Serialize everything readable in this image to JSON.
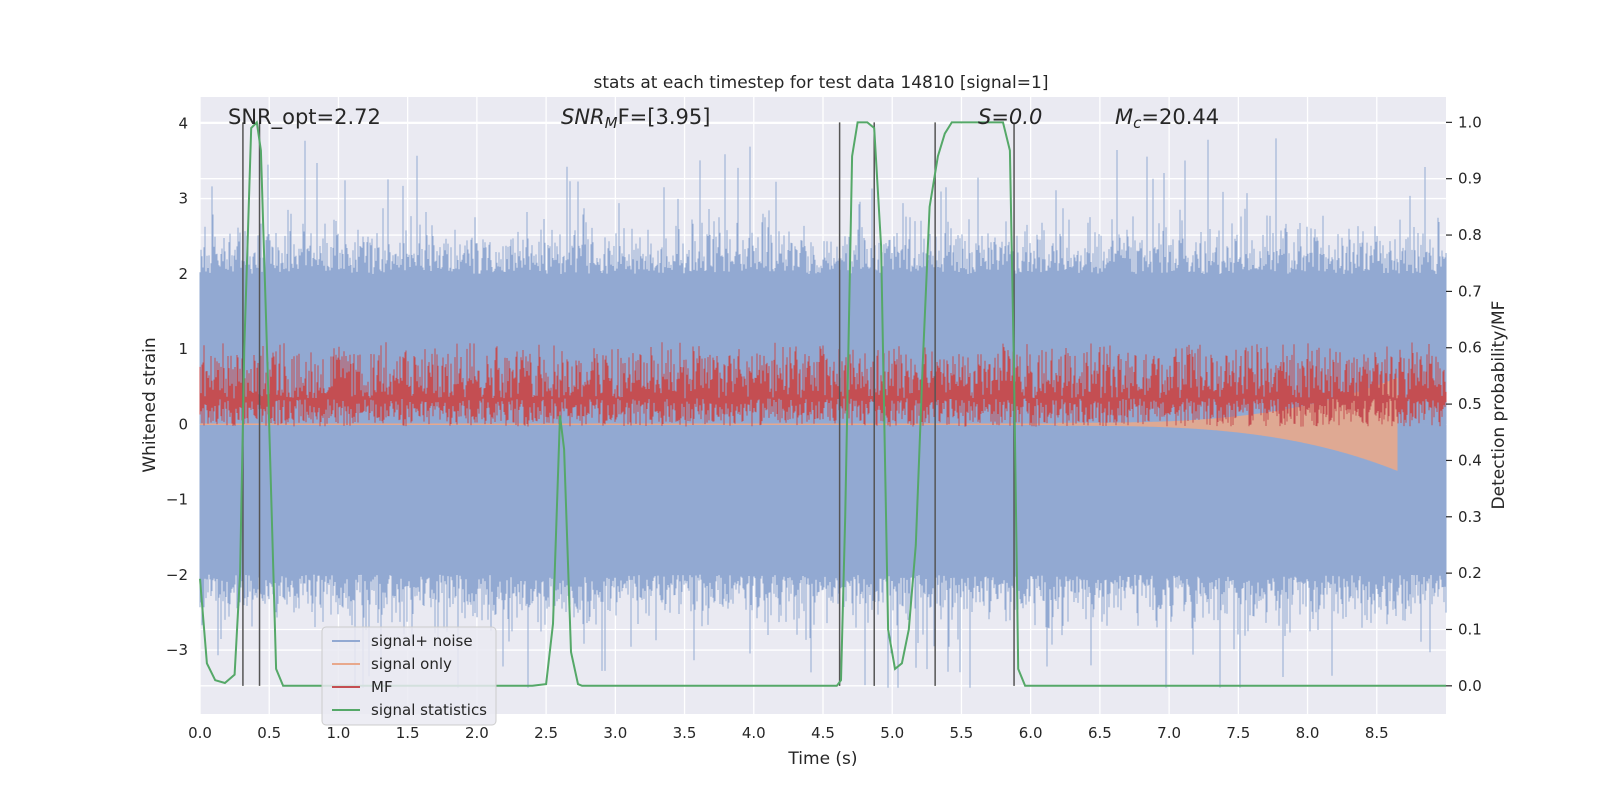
{
  "chart_data": {
    "type": "line",
    "title": "stats at each timestep for test data 14810 [signal=1]",
    "xlabel": "Time (s)",
    "ylabel_left": "Whitened strain",
    "ylabel_right": "Detection probability/MF",
    "xlim": [
      0,
      9.0
    ],
    "ylim_left": [
      -3.85,
      4.35
    ],
    "ylim_right": [
      -0.05,
      1.045
    ],
    "grid": true,
    "legend_position": "lower-left",
    "x_ticks": [
      "0.0",
      "0.5",
      "1.0",
      "1.5",
      "2.0",
      "2.5",
      "3.0",
      "3.5",
      "4.0",
      "4.5",
      "5.0",
      "5.5",
      "6.0",
      "6.5",
      "7.0",
      "7.5",
      "8.0",
      "8.5"
    ],
    "y_ticks_left": [
      "4",
      "3",
      "2",
      "1",
      "0",
      "−1",
      "−2",
      "−3"
    ],
    "y_ticks_right": [
      "1.0",
      "0.9",
      "0.8",
      "0.7",
      "0.6",
      "0.5",
      "0.4",
      "0.3",
      "0.2",
      "0.1",
      "0.0"
    ],
    "annotations": {
      "snr_opt": "SNR_opt=2.72",
      "snr_mf_prefix": "SNR",
      "snr_mf_sub": "M",
      "snr_mf_suffix": "F=[3.95]",
      "s_value": "S=0.0",
      "mc_prefix": "M",
      "mc_sub": "c",
      "mc_suffix": "=20.44"
    },
    "vertical_markers_x": [
      0.31,
      0.43,
      4.62,
      4.87,
      5.31,
      5.88
    ],
    "series": [
      {
        "name": "signal+ noise",
        "color": "#92a9d2",
        "axis": "left",
        "envelope": {
          "x": [
            0,
            9.0
          ],
          "typical_range": [
            -2.0,
            2.0
          ],
          "peak_range": [
            -3.5,
            3.8
          ]
        }
      },
      {
        "name": "signal only",
        "color": "#e8a88c",
        "axis": "left",
        "chirp": {
          "start": 0.0,
          "end": 8.65,
          "final_amplitude": 0.6
        }
      },
      {
        "name": "MF",
        "color": "#c44e52",
        "axis": "right",
        "band": {
          "min": 0.46,
          "max": 0.61,
          "mean": 0.51
        }
      },
      {
        "name": "signal statistics",
        "color": "#55a868",
        "axis": "right",
        "x": [
          0.0,
          0.05,
          0.11,
          0.18,
          0.25,
          0.29,
          0.32,
          0.37,
          0.41,
          0.44,
          0.49,
          0.55,
          0.6,
          0.65,
          0.75,
          1.0,
          1.5,
          2.0,
          2.4,
          2.5,
          2.55,
          2.6,
          2.63,
          2.68,
          2.73,
          2.76,
          2.8,
          3.0,
          3.5,
          4.0,
          4.5,
          4.6,
          4.63,
          4.66,
          4.71,
          4.75,
          4.82,
          4.87,
          4.92,
          4.97,
          5.02,
          5.07,
          5.12,
          5.17,
          5.22,
          5.27,
          5.33,
          5.38,
          5.43,
          5.5,
          5.6,
          5.7,
          5.8,
          5.85,
          5.88,
          5.91,
          5.96,
          6.0,
          6.1,
          6.5,
          7.0,
          7.5,
          8.0,
          8.5,
          9.0
        ],
        "y": [
          0.19,
          0.04,
          0.01,
          0.005,
          0.02,
          0.2,
          0.6,
          0.99,
          1.0,
          0.95,
          0.55,
          0.03,
          0.0,
          0.0,
          0.0,
          0.0,
          0.0,
          0.0,
          0.0,
          0.003,
          0.11,
          0.48,
          0.42,
          0.06,
          0.003,
          0.0,
          0.0,
          0.0,
          0.0,
          0.0,
          0.0,
          0.0,
          0.01,
          0.3,
          0.94,
          1.0,
          1.0,
          0.99,
          0.78,
          0.1,
          0.03,
          0.04,
          0.1,
          0.25,
          0.57,
          0.85,
          0.94,
          0.98,
          1.0,
          1.0,
          1.0,
          1.0,
          1.0,
          0.95,
          0.55,
          0.03,
          0.0,
          0.0,
          0.0,
          0.0,
          0.0,
          0.0,
          0.0,
          0.0,
          0.0
        ]
      }
    ]
  }
}
